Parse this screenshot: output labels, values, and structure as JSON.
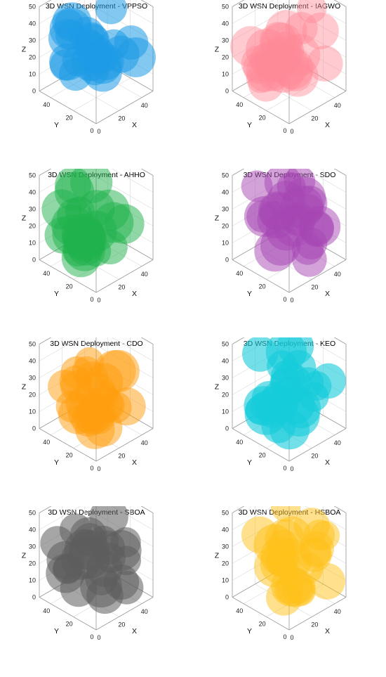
{
  "chart_data": [
    {
      "type": "scatter",
      "subtype": "3d-spheres",
      "title": "3D WSN Deployment - VPPSO",
      "color": "#1e9be6",
      "opacity": 0.55,
      "xlabel": "X",
      "ylabel": "Y",
      "zlabel": "Z",
      "xlim": [
        0,
        50
      ],
      "ylim": [
        0,
        50
      ],
      "zlim": [
        0,
        50
      ],
      "xticks": [
        0,
        20,
        40
      ],
      "yticks": [
        0,
        20,
        40
      ],
      "zticks": [
        0,
        10,
        20,
        30,
        40,
        50
      ],
      "grid": true,
      "seed": 11
    },
    {
      "type": "scatter",
      "subtype": "3d-spheres",
      "title": "3D WSN Deployment - IAGWO",
      "color": "#ff8a96",
      "opacity": 0.45,
      "xlabel": "X",
      "ylabel": "Y",
      "zlabel": "Z",
      "xlim": [
        0,
        50
      ],
      "ylim": [
        0,
        50
      ],
      "zlim": [
        0,
        50
      ],
      "xticks": [
        0,
        20,
        40
      ],
      "yticks": [
        0,
        20,
        40
      ],
      "zticks": [
        0,
        10,
        20,
        30,
        40,
        50
      ],
      "grid": true,
      "seed": 23
    },
    {
      "type": "scatter",
      "subtype": "3d-spheres",
      "title": "3D WSN Deployment - AHHO",
      "color": "#1fb14b",
      "opacity": 0.5,
      "xlabel": "X",
      "ylabel": "Y",
      "zlabel": "Z",
      "xlim": [
        0,
        50
      ],
      "ylim": [
        0,
        50
      ],
      "zlim": [
        0,
        50
      ],
      "xticks": [
        0,
        20,
        40
      ],
      "yticks": [
        0,
        20,
        40
      ],
      "zticks": [
        0,
        10,
        20,
        30,
        40,
        50
      ],
      "grid": true,
      "seed": 37
    },
    {
      "type": "scatter",
      "subtype": "3d-spheres",
      "title": "3D WSN Deployment - SDO",
      "color": "#a545b3",
      "opacity": 0.5,
      "xlabel": "X",
      "ylabel": "Y",
      "zlabel": "Z",
      "xlim": [
        0,
        50
      ],
      "ylim": [
        0,
        50
      ],
      "zlim": [
        0,
        50
      ],
      "xticks": [
        0,
        20,
        40
      ],
      "yticks": [
        0,
        20,
        40
      ],
      "zticks": [
        0,
        10,
        20,
        30,
        40,
        50
      ],
      "grid": true,
      "seed": 41
    },
    {
      "type": "scatter",
      "subtype": "3d-spheres",
      "title": "3D WSN Deployment - CDO",
      "color": "#ff9e0d",
      "opacity": 0.5,
      "xlabel": "X",
      "ylabel": "Y",
      "zlabel": "Z",
      "xlim": [
        0,
        50
      ],
      "ylim": [
        0,
        50
      ],
      "zlim": [
        0,
        50
      ],
      "xticks": [
        0,
        20,
        40
      ],
      "yticks": [
        0,
        20,
        40
      ],
      "zticks": [
        0,
        10,
        20,
        30,
        40,
        50
      ],
      "grid": true,
      "seed": 53
    },
    {
      "type": "scatter",
      "subtype": "3d-spheres",
      "title": "3D WSN Deployment - KEO",
      "color": "#16ccdb",
      "opacity": 0.6,
      "xlabel": "X",
      "ylabel": "Y",
      "zlabel": "Z",
      "xlim": [
        0,
        50
      ],
      "ylim": [
        0,
        50
      ],
      "zlim": [
        0,
        50
      ],
      "xticks": [
        0,
        20,
        40
      ],
      "yticks": [
        0,
        20,
        40
      ],
      "zticks": [
        0,
        10,
        20,
        30,
        40,
        50
      ],
      "grid": true,
      "seed": 67
    },
    {
      "type": "scatter",
      "subtype": "3d-spheres",
      "title": "3D WSN Deployment - SBOA",
      "color": "#5c5c5c",
      "opacity": 0.55,
      "xlabel": "X",
      "ylabel": "Y",
      "zlabel": "Z",
      "xlim": [
        0,
        50
      ],
      "ylim": [
        0,
        50
      ],
      "zlim": [
        0,
        50
      ],
      "xticks": [
        0,
        20,
        40
      ],
      "yticks": [
        0,
        20,
        40
      ],
      "zticks": [
        0,
        10,
        20,
        30,
        40,
        50
      ],
      "grid": true,
      "seed": 79
    },
    {
      "type": "scatter",
      "subtype": "3d-spheres",
      "title": "3D WSN Deployment - HSBOA",
      "color": "#ffc21a",
      "opacity": 0.5,
      "xlabel": "X",
      "ylabel": "Y",
      "zlabel": "Z",
      "xlim": [
        0,
        50
      ],
      "ylim": [
        0,
        50
      ],
      "zlim": [
        0,
        50
      ],
      "xticks": [
        0,
        20,
        40
      ],
      "yticks": [
        0,
        20,
        40
      ],
      "zticks": [
        0,
        10,
        20,
        30,
        40,
        50
      ],
      "grid": true,
      "seed": 97
    }
  ]
}
